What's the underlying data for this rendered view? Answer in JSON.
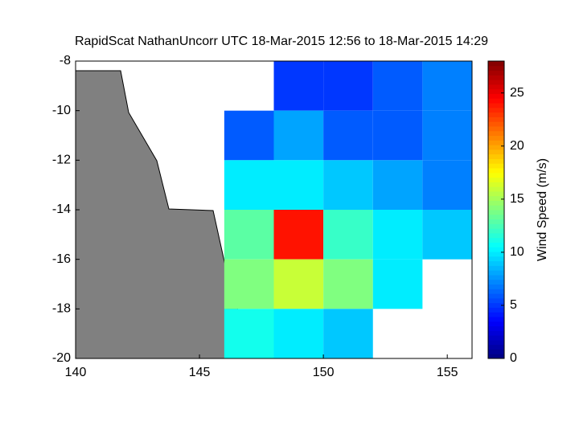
{
  "chart_data": {
    "type": "heatmap",
    "title": "RapidScat NathanUncorr UTC 18-Mar-2015 12:56 to 18-Mar-2015 14:29",
    "x": [
      145,
      147,
      149,
      151,
      153,
      155
    ],
    "y": [
      -9,
      -11,
      -13,
      -15,
      -17,
      -19
    ],
    "values": [
      [
        null,
        null,
        5,
        5,
        6,
        7
      ],
      [
        null,
        6,
        8,
        6,
        6,
        7
      ],
      [
        null,
        10,
        10,
        9,
        8,
        7
      ],
      [
        null,
        13,
        24,
        12,
        10,
        9
      ],
      [
        null,
        14,
        16,
        14,
        10,
        null
      ],
      [
        null,
        11,
        10,
        9,
        null,
        null
      ]
    ],
    "xlim": [
      140,
      156
    ],
    "xticks": [
      140,
      145,
      150,
      155
    ],
    "ylim": [
      -20,
      -8
    ],
    "yticks": [
      -8,
      -10,
      -12,
      -14,
      -16,
      -18,
      -20
    ],
    "colorbar": {
      "label": "Wind Speed (m/s)",
      "clim": [
        0,
        28
      ],
      "ticks": [
        0,
        5,
        10,
        15,
        20,
        25
      ]
    }
  }
}
